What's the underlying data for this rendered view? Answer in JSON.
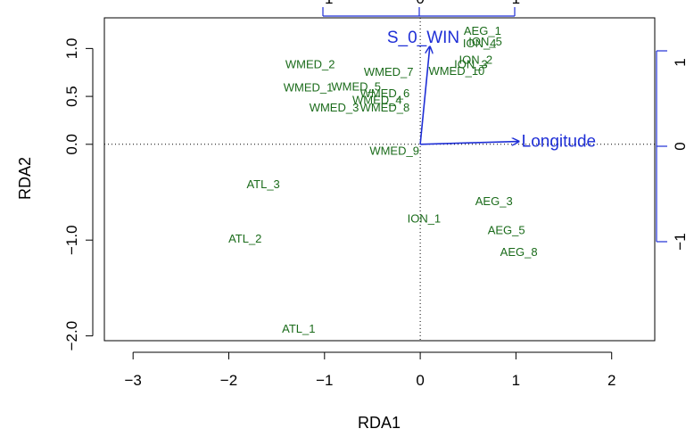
{
  "chart_data": {
    "type": "scatter",
    "title": "",
    "xlabel": "RDA1",
    "ylabel": "RDA2",
    "xlim": [
      -3.3,
      2.45
    ],
    "ylim": [
      -2.05,
      1.32
    ],
    "x_ticks": [
      -3,
      -2,
      -1,
      0,
      1,
      2
    ],
    "y_ticks": [
      1.0,
      0.5,
      0.0,
      -1.0,
      -2.0
    ],
    "y_tick_labels": [
      "1.0",
      "0.5",
      "0.0",
      "−1.0",
      "−2.0"
    ],
    "grid": false,
    "zero_lines": true,
    "colors": {
      "sites": "#1a6b1a",
      "arrows": "#1f2fd6",
      "axis": "#000000"
    },
    "sites": [
      {
        "label": "AEG_1",
        "x": 0.65,
        "y": 1.18
      },
      {
        "label": "ION_5",
        "x": 0.68,
        "y": 1.07
      },
      {
        "label": "ION_4",
        "x": 0.62,
        "y": 1.05
      },
      {
        "label": "ION_2",
        "x": 0.58,
        "y": 0.88
      },
      {
        "label": "ION_3",
        "x": 0.53,
        "y": 0.83
      },
      {
        "label": "WMED_10",
        "x": 0.38,
        "y": 0.76
      },
      {
        "label": "WMED_2",
        "x": -1.15,
        "y": 0.83
      },
      {
        "label": "WMED_7",
        "x": -0.33,
        "y": 0.75
      },
      {
        "label": "WMED_1",
        "x": -1.17,
        "y": 0.59
      },
      {
        "label": "WMED_5",
        "x": -0.67,
        "y": 0.6
      },
      {
        "label": "WMED_6",
        "x": -0.37,
        "y": 0.53
      },
      {
        "label": "WMED_4",
        "x": -0.45,
        "y": 0.46
      },
      {
        "label": "WMED_3",
        "x": -0.9,
        "y": 0.38
      },
      {
        "label": "WMED_8",
        "x": -0.37,
        "y": 0.38
      },
      {
        "label": "WMED_9",
        "x": -0.27,
        "y": -0.07
      },
      {
        "label": "ATL_3",
        "x": -1.64,
        "y": -0.42
      },
      {
        "label": "AEG_3",
        "x": 0.77,
        "y": -0.6
      },
      {
        "label": "ION_1",
        "x": 0.04,
        "y": -0.78
      },
      {
        "label": "AEG_5",
        "x": 0.9,
        "y": -0.9
      },
      {
        "label": "AEG_8",
        "x": 1.03,
        "y": -1.13
      },
      {
        "label": "ATL_2",
        "x": -1.83,
        "y": -0.99
      },
      {
        "label": "ATL_1",
        "x": -1.27,
        "y": -1.93
      }
    ],
    "arrows": [
      {
        "label": "S_0_WIN",
        "x": 0.1,
        "y": 1.02
      },
      {
        "label": "Longitude",
        "x": 1.03,
        "y": 0.03
      }
    ],
    "secondary_axes": {
      "top_ticks": [
        "−1",
        "0",
        "1"
      ],
      "right_ticks": [
        "1",
        "0",
        "−1"
      ]
    }
  }
}
